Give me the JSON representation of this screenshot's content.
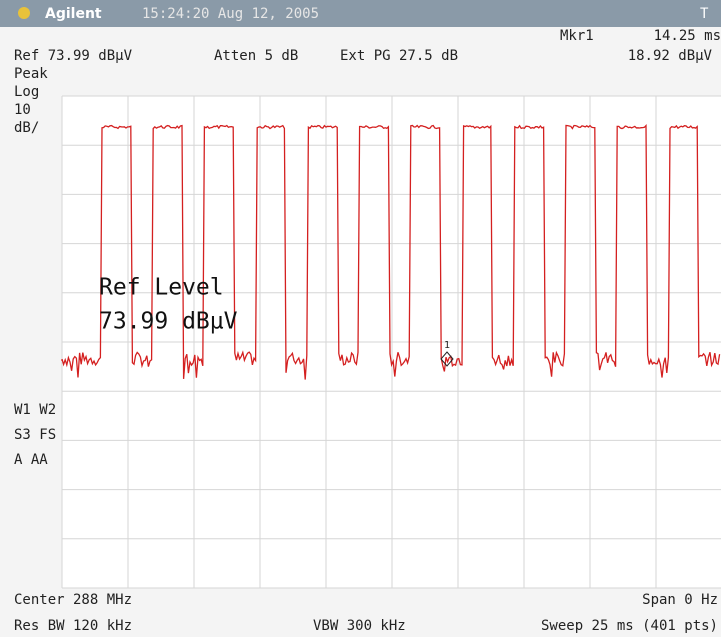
{
  "header": {
    "brand": "Agilent",
    "timestamp": "15:24:20  Aug 12, 2005",
    "status": "T"
  },
  "marker": {
    "label": "Mkr1",
    "time": "14.25 ms",
    "level": "18.92 dBµV"
  },
  "settings": {
    "ref": "Ref 73.99 dBµV",
    "atten": "Atten 5 dB",
    "ext_pg": "Ext PG 27.5 dB"
  },
  "scale_labels": [
    "Peak",
    "Log",
    "10",
    "dB/"
  ],
  "ref_level": {
    "label": "Ref Level",
    "value": "73.99 dBµV"
  },
  "marker_number": "1",
  "trace_labels": [
    "W1  W2",
    "S3  FS",
    "A   AA"
  ],
  "footer": {
    "center": "Center 288 MHz",
    "span": "Span 0 Hz",
    "res_bw": "Res BW 120 kHz",
    "vbw": "VBW 300 kHz",
    "sweep": "Sweep 25 ms (401 pts)"
  }
}
